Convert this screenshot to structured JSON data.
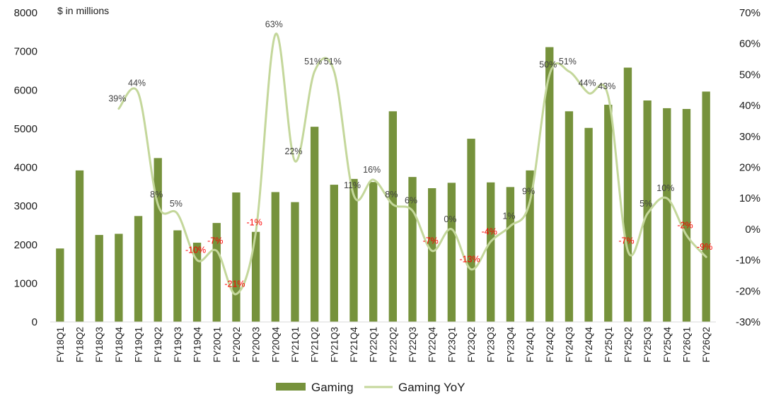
{
  "chart_data": {
    "type": "bar",
    "unit_note": "$ in millions",
    "categories": [
      "FY18Q1",
      "FY18Q2",
      "FY18Q3",
      "FY18Q4",
      "FY19Q1",
      "FY19Q2",
      "FY19Q3",
      "FY19Q4",
      "FY20Q1",
      "FY20Q2",
      "FY20Q3",
      "FY20Q4",
      "FY21Q1",
      "FY21Q2",
      "FY21Q3",
      "FY21Q4",
      "FY22Q1",
      "FY22Q2",
      "FY22Q3",
      "FY22Q4",
      "FY23Q1",
      "FY23Q2",
      "FY23Q3",
      "FY23Q4",
      "FY24Q1",
      "FY24Q2",
      "FY24Q3",
      "FY24Q4",
      "FY25Q1",
      "FY25Q2",
      "FY25Q3",
      "FY25Q4",
      "FY26Q1",
      "FY26Q2"
    ],
    "series": [
      {
        "name": "Gaming",
        "type": "bar",
        "axis": "left",
        "color": "#76923C",
        "values": [
          1900,
          3920,
          2250,
          2280,
          2740,
          4240,
          2370,
          2050,
          2560,
          3350,
          2330,
          3360,
          3100,
          5050,
          3550,
          3700,
          3620,
          5450,
          3750,
          3460,
          3600,
          4740,
          3610,
          3490,
          3920,
          7110,
          5450,
          5020,
          5620,
          6580,
          5730,
          5530,
          5510,
          5960
        ]
      },
      {
        "name": "Gaming YoY",
        "type": "line",
        "axis": "right",
        "color": "#C4D79B",
        "values": [
          null,
          null,
          null,
          39,
          44,
          8,
          5,
          -10,
          -7,
          -21,
          -1,
          63,
          22,
          51,
          51,
          11,
          16,
          8,
          6,
          -7,
          0,
          -13,
          -4,
          1,
          9,
          50,
          51,
          44,
          43,
          -7,
          5,
          10,
          -2,
          -9
        ],
        "labels": [
          null,
          null,
          null,
          "39%",
          "44%",
          "8%",
          "5%",
          "-10%",
          "-7%",
          "-21%",
          "-1%",
          "63%",
          "22%",
          "51%",
          "51%",
          "11%",
          "16%",
          "8%",
          "6%",
          "-7%",
          "0%",
          "-13%",
          "-4%",
          "1%",
          "9%",
          "50%",
          "51%",
          "44%",
          "43%",
          "-7%",
          "5%",
          "10%",
          "-2%",
          "-9%"
        ]
      }
    ],
    "y_left": {
      "min": 0,
      "max": 8000,
      "ticks": [
        "0",
        "1000",
        "2000",
        "3000",
        "4000",
        "5000",
        "6000",
        "7000",
        "8000"
      ]
    },
    "y_right": {
      "min": -30,
      "max": 70,
      "ticks": [
        "-30%",
        "-20%",
        "-10%",
        "0%",
        "10%",
        "20%",
        "30%",
        "40%",
        "50%",
        "60%",
        "70%"
      ]
    },
    "negative_label_color": "#FF0000",
    "positive_label_color": "#404040",
    "legend": [
      {
        "name": "Gaming",
        "kind": "bar"
      },
      {
        "name": "Gaming YoY",
        "kind": "line"
      }
    ],
    "legend_position": "bottom",
    "grid": false
  }
}
